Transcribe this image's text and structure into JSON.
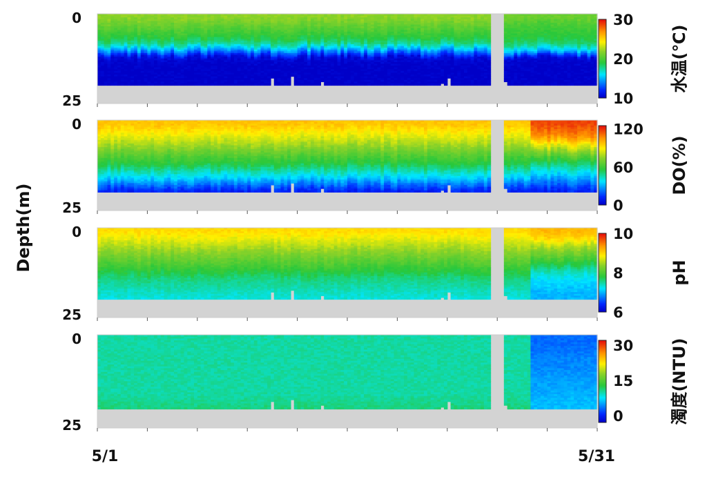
{
  "chart_data": {
    "type": "heatmap",
    "ylabel": "Depth(m)",
    "xlim_days": [
      0,
      30
    ],
    "x_tick_labels": [
      "5/1",
      "5/31"
    ],
    "x_minor_ticks_days": [
      0,
      3,
      6,
      9,
      12,
      15,
      18,
      21,
      24,
      27,
      30
    ],
    "depth_tick_labels": [
      "0",
      "25"
    ],
    "depth_ticks": [
      0,
      25
    ],
    "missing_data_days": [
      23.6,
      24.5
    ],
    "no_data_color": "#d3d3d3",
    "profile_depths_m": [
      0,
      2,
      4,
      6,
      8,
      10,
      12,
      14,
      16,
      18,
      20,
      22
    ],
    "panels": [
      {
        "label": "水温(℃)",
        "cbar_range": [
          10,
          30
        ],
        "cbar_ticks": [
          "10",
          "20",
          "30"
        ],
        "profile_early": [
          22,
          21,
          20,
          19,
          17.5,
          14,
          10.5,
          10,
          10,
          10,
          10,
          10
        ],
        "profile_late": [
          21,
          20,
          19.5,
          19,
          18,
          15,
          10.5,
          10,
          10,
          10,
          10,
          10
        ],
        "late_from_day": 24.5
      },
      {
        "label": "DO(%)",
        "cbar_range": [
          0,
          125
        ],
        "cbar_ticks": [
          "0",
          "60",
          "120"
        ],
        "profile_early": [
          98,
          92,
          85,
          78,
          70,
          62,
          55,
          45,
          35,
          22,
          10,
          8
        ],
        "profile_late": [
          118,
          112,
          105,
          90,
          75,
          62,
          50,
          40,
          30,
          20,
          10,
          8
        ],
        "late_from_day": 26
      },
      {
        "label": "pH",
        "cbar_range": [
          6,
          10
        ],
        "cbar_ticks": [
          "6",
          "8",
          "10"
        ],
        "profile_early": [
          9.0,
          8.8,
          8.6,
          8.4,
          8.2,
          8.0,
          7.8,
          7.6,
          7.5,
          7.4,
          7.3,
          7.3
        ],
        "profile_late": [
          9.2,
          9.0,
          8.6,
          8.3,
          8.0,
          7.7,
          7.4,
          7.2,
          7.1,
          7.0,
          7.0,
          7.0
        ],
        "late_from_day": 26
      },
      {
        "label": "濁度(NTU)",
        "cbar_range": [
          -3,
          32
        ],
        "cbar_ticks": [
          "0",
          "15",
          "30"
        ],
        "profile_early": [
          10,
          10,
          10,
          10,
          10,
          10,
          10,
          10,
          10,
          10.5,
          11,
          11
        ],
        "profile_late": [
          3,
          3,
          3.5,
          4,
          4,
          4.5,
          5,
          5,
          5.5,
          6,
          6,
          6
        ],
        "late_from_day": 26
      }
    ]
  }
}
